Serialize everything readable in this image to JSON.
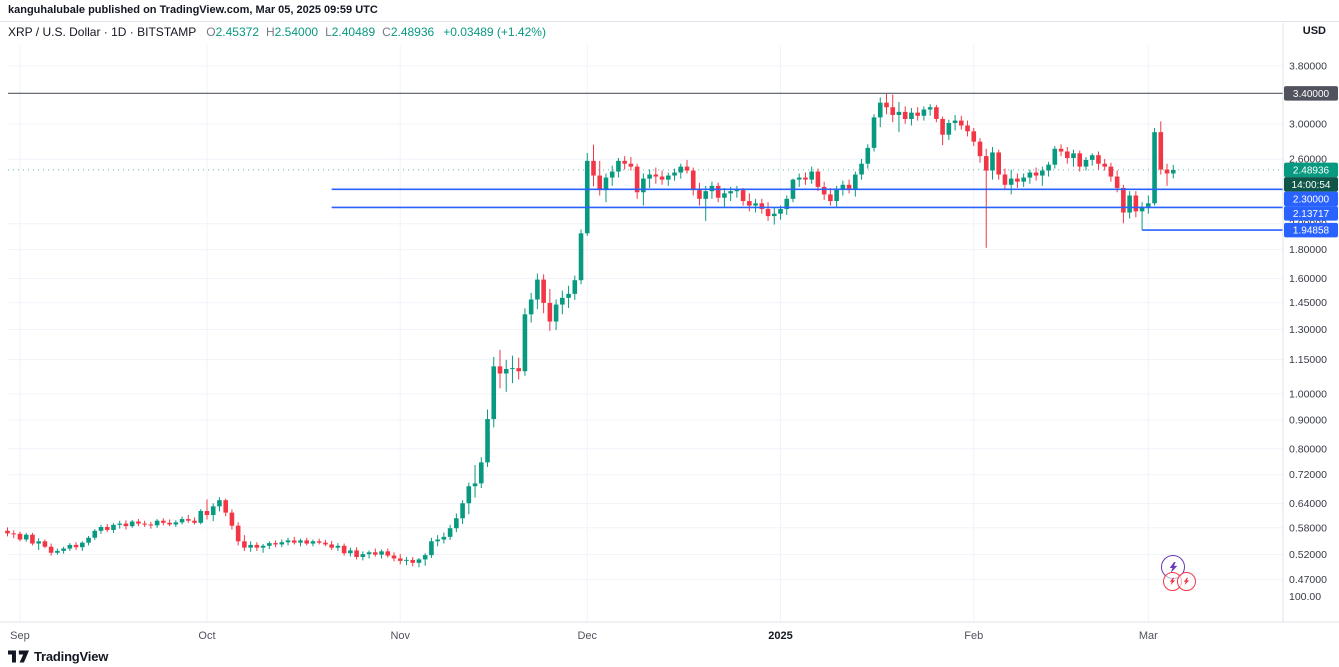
{
  "attribution": {
    "text": "kanguhalubale published on TradingView.com, Mar 05, 2025 09:59 UTC"
  },
  "header": {
    "symbol_title": "XRP / U.S. Dollar · 1D · BITSTAMP",
    "ohlc": {
      "o_label": "O",
      "o": "2.45372",
      "h_label": "H",
      "h": "2.54000",
      "l_label": "L",
      "l": "2.40489",
      "c_label": "C",
      "c": "2.48936",
      "change": "+0.03489 (+1.42%)"
    },
    "currency_button": "USD"
  },
  "price_scale": {
    "ticks": [
      {
        "p": 3.8,
        "label": "3.80000"
      },
      {
        "p": 3.0,
        "label": "3.00000"
      },
      {
        "p": 2.6,
        "label": "2.60000"
      },
      {
        "p": 2.0,
        "label": "2.00000"
      },
      {
        "p": 1.8,
        "label": "1.80000"
      },
      {
        "p": 1.6,
        "label": "1.60000"
      },
      {
        "p": 1.45,
        "label": "1.45000"
      },
      {
        "p": 1.3,
        "label": "1.30000"
      },
      {
        "p": 1.15,
        "label": "1.15000"
      },
      {
        "p": 1.0,
        "label": "1.00000"
      },
      {
        "p": 0.9,
        "label": "0.90000"
      },
      {
        "p": 0.8,
        "label": "0.80000"
      },
      {
        "p": 0.72,
        "label": "0.72000"
      },
      {
        "p": 0.64,
        "label": "0.64000"
      },
      {
        "p": 0.58,
        "label": "0.58000"
      },
      {
        "p": 0.52,
        "label": "0.52000"
      },
      {
        "p": 0.47,
        "label": "0.47000"
      }
    ],
    "bottom_label": "100.00",
    "badges": [
      {
        "label": "3.40000",
        "p": 3.4,
        "bg": "#50535e"
      },
      {
        "label": "2.48936",
        "p": 2.48936,
        "bg": "#089981"
      },
      {
        "label": "14:00:54",
        "countdown": true,
        "bg": "#0f5649"
      },
      {
        "label": "2.30000",
        "p": 2.3,
        "bg": "#2962ff"
      },
      {
        "label": "2.13717",
        "p": 2.13717,
        "bg": "#2962ff"
      },
      {
        "label": "1.94858",
        "p": 1.94858,
        "bg": "#2962ff"
      }
    ]
  },
  "time_scale": {
    "labels": [
      {
        "text": "Sep",
        "day": 2
      },
      {
        "text": "Oct",
        "day": 32
      },
      {
        "text": "Nov",
        "day": 63
      },
      {
        "text": "Dec",
        "day": 93
      },
      {
        "text": "2025",
        "day": 124,
        "bold": true
      },
      {
        "text": "Feb",
        "day": 155
      },
      {
        "text": "Mar",
        "day": 183
      }
    ]
  },
  "chart_data": {
    "type": "candlestick",
    "title": "XRP / U.S. Dollar",
    "symbol": "XRP/USD",
    "exchange": "BITSTAMP",
    "interval": "1D",
    "scale": "log",
    "ylim": [
      0.45,
      3.9
    ],
    "start_date": "2024-08-30",
    "columns": [
      "open",
      "high",
      "low",
      "close"
    ],
    "last_price": 2.48936,
    "countdown": "14:00:54",
    "up_color": "#089981",
    "down_color": "#f23645",
    "levels": [
      {
        "price": 3.4,
        "color": "#555a64",
        "from_day": -1,
        "label": "3.40000"
      },
      {
        "price": 2.3,
        "color": "#2962ff",
        "from_day": 52,
        "label": "2.30000"
      },
      {
        "price": 2.13717,
        "color": "#2962ff",
        "from_day": 52,
        "label": "2.13717"
      },
      {
        "price": 1.94858,
        "color": "#2962ff",
        "from_day": 182,
        "label": "1.94858"
      }
    ],
    "candles": [
      [
        0.573,
        0.581,
        0.56,
        0.567
      ],
      [
        0.567,
        0.574,
        0.556,
        0.566
      ],
      [
        0.566,
        0.571,
        0.549,
        0.553
      ],
      [
        0.553,
        0.568,
        0.548,
        0.564
      ],
      [
        0.564,
        0.568,
        0.54,
        0.544
      ],
      [
        0.544,
        0.556,
        0.53,
        0.549
      ],
      [
        0.549,
        0.553,
        0.534,
        0.537
      ],
      [
        0.537,
        0.544,
        0.518,
        0.524
      ],
      [
        0.524,
        0.533,
        0.52,
        0.528
      ],
      [
        0.528,
        0.537,
        0.522,
        0.533
      ],
      [
        0.533,
        0.545,
        0.528,
        0.541
      ],
      [
        0.541,
        0.547,
        0.53,
        0.536
      ],
      [
        0.536,
        0.549,
        0.528,
        0.546
      ],
      [
        0.546,
        0.561,
        0.54,
        0.557
      ],
      [
        0.557,
        0.577,
        0.552,
        0.573
      ],
      [
        0.573,
        0.587,
        0.566,
        0.582
      ],
      [
        0.582,
        0.589,
        0.57,
        0.575
      ],
      [
        0.575,
        0.591,
        0.568,
        0.587
      ],
      [
        0.587,
        0.597,
        0.578,
        0.59
      ],
      [
        0.59,
        0.598,
        0.576,
        0.584
      ],
      [
        0.584,
        0.599,
        0.58,
        0.595
      ],
      [
        0.595,
        0.601,
        0.584,
        0.59
      ],
      [
        0.59,
        0.597,
        0.582,
        0.588
      ],
      [
        0.588,
        0.594,
        0.578,
        0.586
      ],
      [
        0.586,
        0.601,
        0.58,
        0.597
      ],
      [
        0.597,
        0.603,
        0.586,
        0.592
      ],
      [
        0.592,
        0.6,
        0.584,
        0.588
      ],
      [
        0.588,
        0.598,
        0.582,
        0.593
      ],
      [
        0.593,
        0.607,
        0.588,
        0.601
      ],
      [
        0.601,
        0.611,
        0.592,
        0.597
      ],
      [
        0.597,
        0.605,
        0.588,
        0.592
      ],
      [
        0.592,
        0.626,
        0.588,
        0.621
      ],
      [
        0.621,
        0.651,
        0.6,
        0.611
      ],
      [
        0.611,
        0.641,
        0.596,
        0.633
      ],
      [
        0.633,
        0.657,
        0.62,
        0.649
      ],
      [
        0.649,
        0.653,
        0.608,
        0.617
      ],
      [
        0.617,
        0.625,
        0.576,
        0.585
      ],
      [
        0.585,
        0.593,
        0.54,
        0.549
      ],
      [
        0.549,
        0.563,
        0.528,
        0.535
      ],
      [
        0.535,
        0.549,
        0.526,
        0.541
      ],
      [
        0.541,
        0.547,
        0.528,
        0.535
      ],
      [
        0.535,
        0.543,
        0.524,
        0.539
      ],
      [
        0.539,
        0.549,
        0.532,
        0.545
      ],
      [
        0.545,
        0.551,
        0.536,
        0.542
      ],
      [
        0.542,
        0.553,
        0.536,
        0.547
      ],
      [
        0.547,
        0.557,
        0.54,
        0.551
      ],
      [
        0.551,
        0.559,
        0.542,
        0.546
      ],
      [
        0.546,
        0.555,
        0.538,
        0.551
      ],
      [
        0.551,
        0.557,
        0.54,
        0.544
      ],
      [
        0.544,
        0.553,
        0.538,
        0.549
      ],
      [
        0.549,
        0.555,
        0.542,
        0.546
      ],
      [
        0.546,
        0.552,
        0.538,
        0.542
      ],
      [
        0.542,
        0.55,
        0.53,
        0.535
      ],
      [
        0.535,
        0.545,
        0.528,
        0.539
      ],
      [
        0.539,
        0.544,
        0.518,
        0.523
      ],
      [
        0.523,
        0.535,
        0.516,
        0.529
      ],
      [
        0.529,
        0.536,
        0.51,
        0.515
      ],
      [
        0.515,
        0.527,
        0.508,
        0.521
      ],
      [
        0.521,
        0.529,
        0.512,
        0.525
      ],
      [
        0.525,
        0.533,
        0.516,
        0.52
      ],
      [
        0.52,
        0.531,
        0.512,
        0.527
      ],
      [
        0.527,
        0.533,
        0.514,
        0.518
      ],
      [
        0.518,
        0.525,
        0.506,
        0.512
      ],
      [
        0.512,
        0.521,
        0.5,
        0.507
      ],
      [
        0.507,
        0.515,
        0.498,
        0.509
      ],
      [
        0.509,
        0.515,
        0.496,
        0.503
      ],
      [
        0.503,
        0.513,
        0.494,
        0.51
      ],
      [
        0.51,
        0.523,
        0.497,
        0.519
      ],
      [
        0.519,
        0.557,
        0.513,
        0.549
      ],
      [
        0.549,
        0.563,
        0.538,
        0.553
      ],
      [
        0.553,
        0.569,
        0.544,
        0.559
      ],
      [
        0.559,
        0.587,
        0.552,
        0.579
      ],
      [
        0.579,
        0.615,
        0.57,
        0.603
      ],
      [
        0.603,
        0.649,
        0.589,
        0.641
      ],
      [
        0.641,
        0.697,
        0.613,
        0.687
      ],
      [
        0.687,
        0.749,
        0.656,
        0.695
      ],
      [
        0.695,
        0.773,
        0.682,
        0.757
      ],
      [
        0.757,
        0.939,
        0.743,
        0.903
      ],
      [
        0.903,
        1.163,
        0.873,
        1.119
      ],
      [
        1.119,
        1.197,
        1.023,
        1.087
      ],
      [
        1.087,
        1.149,
        1.009,
        1.107
      ],
      [
        1.107,
        1.169,
        1.045,
        1.111
      ],
      [
        1.111,
        1.159,
        1.061,
        1.097
      ],
      [
        1.097,
        1.417,
        1.077,
        1.383
      ],
      [
        1.383,
        1.509,
        1.337,
        1.469
      ],
      [
        1.469,
        1.633,
        1.413,
        1.593
      ],
      [
        1.593,
        1.627,
        1.389,
        1.449
      ],
      [
        1.449,
        1.533,
        1.293,
        1.343
      ],
      [
        1.343,
        1.469,
        1.297,
        1.439
      ],
      [
        1.439,
        1.523,
        1.383,
        1.479
      ],
      [
        1.479,
        1.553,
        1.419,
        1.503
      ],
      [
        1.503,
        1.619,
        1.467,
        1.589
      ],
      [
        1.589,
        1.953,
        1.563,
        1.923
      ],
      [
        1.923,
        2.667,
        1.903,
        2.583
      ],
      [
        2.583,
        2.759,
        2.329,
        2.433
      ],
      [
        2.433,
        2.583,
        2.243,
        2.293
      ],
      [
        2.293,
        2.453,
        2.183,
        2.413
      ],
      [
        2.413,
        2.533,
        2.333,
        2.473
      ],
      [
        2.473,
        2.613,
        2.413,
        2.583
      ],
      [
        2.583,
        2.633,
        2.493,
        2.553
      ],
      [
        2.553,
        2.623,
        2.483,
        2.523
      ],
      [
        2.523,
        2.553,
        2.213,
        2.273
      ],
      [
        2.273,
        2.453,
        2.153,
        2.403
      ],
      [
        2.403,
        2.493,
        2.313,
        2.443
      ],
      [
        2.443,
        2.513,
        2.353,
        2.423
      ],
      [
        2.423,
        2.483,
        2.343,
        2.393
      ],
      [
        2.393,
        2.463,
        2.333,
        2.433
      ],
      [
        2.433,
        2.503,
        2.383,
        2.463
      ],
      [
        2.463,
        2.553,
        2.403,
        2.523
      ],
      [
        2.523,
        2.593,
        2.453,
        2.483
      ],
      [
        2.483,
        2.513,
        2.243,
        2.293
      ],
      [
        2.293,
        2.363,
        2.153,
        2.213
      ],
      [
        2.213,
        2.333,
        2.023,
        2.283
      ],
      [
        2.283,
        2.373,
        2.213,
        2.333
      ],
      [
        2.333,
        2.363,
        2.183,
        2.223
      ],
      [
        2.223,
        2.313,
        2.143,
        2.263
      ],
      [
        2.263,
        2.323,
        2.193,
        2.283
      ],
      [
        2.283,
        2.333,
        2.223,
        2.293
      ],
      [
        2.293,
        2.313,
        2.153,
        2.193
      ],
      [
        2.193,
        2.263,
        2.103,
        2.153
      ],
      [
        2.153,
        2.213,
        2.093,
        2.173
      ],
      [
        2.173,
        2.213,
        2.083,
        2.123
      ],
      [
        2.123,
        2.183,
        2.023,
        2.063
      ],
      [
        2.063,
        2.133,
        1.993,
        2.083
      ],
      [
        2.083,
        2.153,
        2.033,
        2.123
      ],
      [
        2.123,
        2.243,
        2.073,
        2.213
      ],
      [
        2.213,
        2.403,
        2.183,
        2.393
      ],
      [
        2.393,
        2.453,
        2.323,
        2.413
      ],
      [
        2.413,
        2.463,
        2.343,
        2.393
      ],
      [
        2.393,
        2.523,
        2.353,
        2.473
      ],
      [
        2.473,
        2.503,
        2.283,
        2.323
      ],
      [
        2.323,
        2.373,
        2.203,
        2.253
      ],
      [
        2.253,
        2.313,
        2.153,
        2.193
      ],
      [
        2.193,
        2.333,
        2.143,
        2.303
      ],
      [
        2.303,
        2.383,
        2.243,
        2.343
      ],
      [
        2.343,
        2.393,
        2.263,
        2.303
      ],
      [
        2.303,
        2.473,
        2.233,
        2.443
      ],
      [
        2.443,
        2.603,
        2.393,
        2.553
      ],
      [
        2.553,
        2.763,
        2.503,
        2.723
      ],
      [
        2.723,
        3.123,
        2.683,
        3.083
      ],
      [
        3.083,
        3.343,
        2.963,
        3.273
      ],
      [
        3.273,
        3.393,
        3.123,
        3.213
      ],
      [
        3.213,
        3.383,
        3.023,
        3.113
      ],
      [
        3.113,
        3.283,
        2.903,
        3.153
      ],
      [
        3.153,
        3.223,
        3.003,
        3.063
      ],
      [
        3.063,
        3.203,
        2.983,
        3.143
      ],
      [
        3.143,
        3.213,
        3.043,
        3.103
      ],
      [
        3.103,
        3.223,
        3.043,
        3.183
      ],
      [
        3.183,
        3.253,
        3.103,
        3.213
      ],
      [
        3.213,
        3.243,
        3.023,
        3.063
      ],
      [
        3.063,
        3.093,
        2.753,
        2.873
      ],
      [
        2.873,
        3.053,
        2.813,
        3.013
      ],
      [
        3.013,
        3.113,
        2.923,
        3.043
      ],
      [
        3.043,
        3.103,
        2.933,
        2.983
      ],
      [
        2.983,
        3.043,
        2.853,
        2.913
      ],
      [
        2.913,
        2.953,
        2.743,
        2.793
      ],
      [
        2.793,
        2.833,
        2.563,
        2.633
      ],
      [
        2.633,
        2.713,
        1.813,
        2.483
      ],
      [
        2.483,
        2.733,
        2.393,
        2.673
      ],
      [
        2.673,
        2.703,
        2.393,
        2.443
      ],
      [
        2.443,
        2.503,
        2.293,
        2.343
      ],
      [
        2.343,
        2.493,
        2.253,
        2.403
      ],
      [
        2.403,
        2.453,
        2.313,
        2.373
      ],
      [
        2.373,
        2.453,
        2.323,
        2.413
      ],
      [
        2.413,
        2.493,
        2.353,
        2.463
      ],
      [
        2.463,
        2.513,
        2.383,
        2.433
      ],
      [
        2.433,
        2.523,
        2.333,
        2.483
      ],
      [
        2.483,
        2.573,
        2.423,
        2.543
      ],
      [
        2.543,
        2.743,
        2.503,
        2.713
      ],
      [
        2.713,
        2.763,
        2.633,
        2.683
      ],
      [
        2.683,
        2.733,
        2.553,
        2.613
      ],
      [
        2.613,
        2.703,
        2.523,
        2.663
      ],
      [
        2.663,
        2.693,
        2.473,
        2.523
      ],
      [
        2.523,
        2.623,
        2.483,
        2.593
      ],
      [
        2.593,
        2.663,
        2.533,
        2.643
      ],
      [
        2.643,
        2.683,
        2.493,
        2.553
      ],
      [
        2.553,
        2.603,
        2.483,
        2.523
      ],
      [
        2.523,
        2.563,
        2.373,
        2.423
      ],
      [
        2.423,
        2.483,
        2.273,
        2.313
      ],
      [
        2.313,
        2.343,
        2.003,
        2.093
      ],
      [
        2.093,
        2.283,
        2.043,
        2.243
      ],
      [
        2.243,
        2.283,
        2.053,
        2.103
      ],
      [
        2.103,
        2.183,
        1.949,
        2.143
      ],
      [
        2.143,
        2.243,
        2.083,
        2.173
      ],
      [
        2.173,
        2.953,
        2.153,
        2.903
      ],
      [
        2.903,
        3.033,
        2.443,
        2.493
      ],
      [
        2.493,
        2.553,
        2.333,
        2.454
      ],
      [
        2.45372,
        2.54,
        2.40489,
        2.48936
      ]
    ]
  },
  "stickers": {
    "lightning_color": "#673ab7",
    "reaction_color": "#f23645"
  },
  "footer": {
    "brand": "TradingView"
  }
}
